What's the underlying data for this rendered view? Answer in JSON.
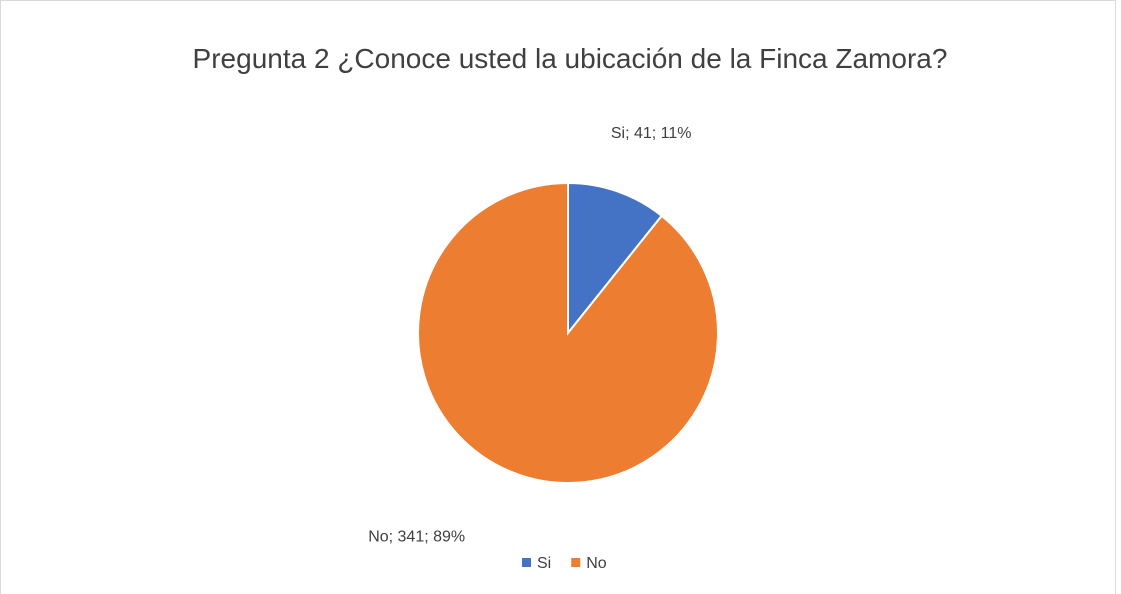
{
  "chart_data": {
    "type": "pie",
    "title": "Pregunta 2 ¿Conoce usted la ubicación de la Finca Zamora?",
    "categories": [
      "Si",
      "No"
    ],
    "values": [
      41,
      341
    ],
    "value_labels": [
      "Si; 41; 11%",
      "No; 341; 89%"
    ],
    "colors": [
      "#4472c4",
      "#ed7d31"
    ],
    "legend": "bottom"
  }
}
